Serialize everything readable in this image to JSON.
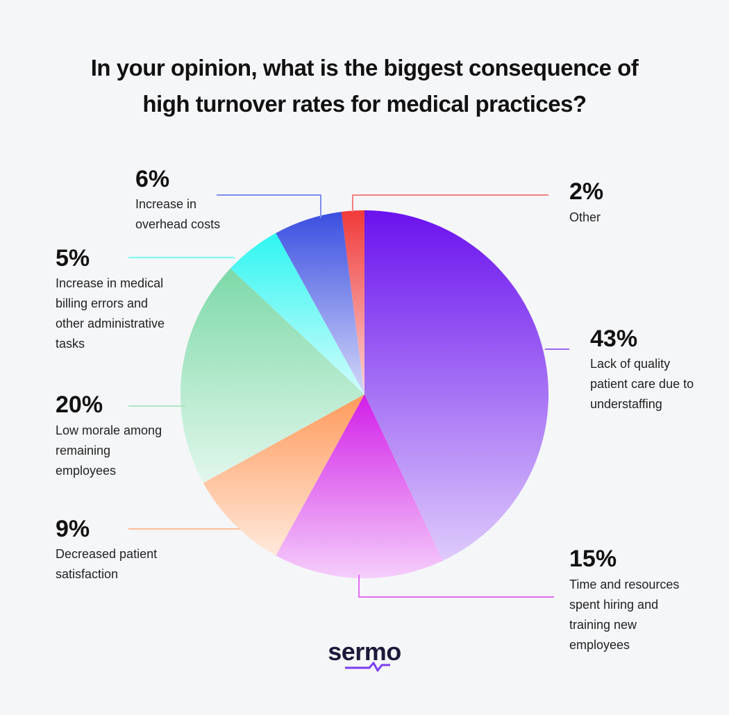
{
  "chart_data": {
    "type": "pie",
    "title": "In your opinion, what is the biggest consequence of high turnover rates for medical practices?",
    "categories": [
      "Lack of quality patient care due to understaffing",
      "Time and resources spent hiring and training new employees",
      "Decreased patient satisfaction",
      "Low morale among remaining employees",
      "Increase in medical billing errors and other administrative tasks",
      "Increase in overhead costs",
      "Other"
    ],
    "values": [
      43,
      15,
      9,
      20,
      5,
      6,
      2
    ],
    "value_labels": [
      "43%",
      "15%",
      "9%",
      "20%",
      "5%",
      "6%",
      "2%"
    ],
    "colors": [
      "#6a12ee",
      "#d21ee8",
      "#ff9a5c",
      "#7dd9a8",
      "#2ef5f0",
      "#3a4ee0",
      "#f03a3a"
    ]
  },
  "logo": "sermo"
}
